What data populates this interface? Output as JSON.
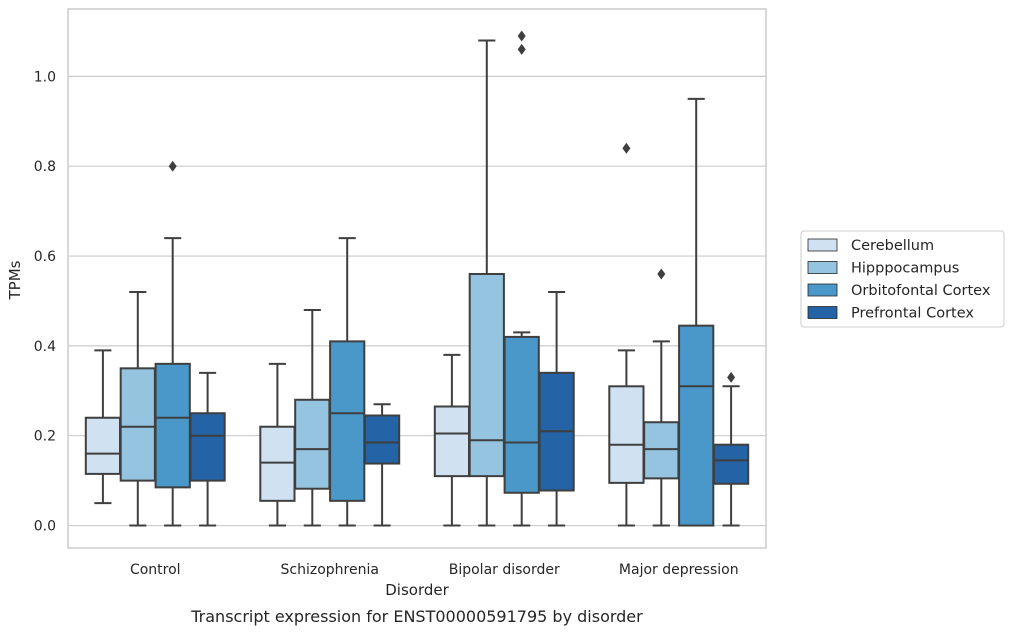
{
  "chart_data": {
    "type": "box",
    "caption": "Transcript expression for ENST00000591795 by disorder",
    "xlabel": "Disorder",
    "ylabel": "TPMs",
    "ylim": [
      -0.05,
      1.15
    ],
    "yticks": [
      0.0,
      0.2,
      0.4,
      0.6,
      0.8,
      1.0
    ],
    "ytick_labels": [
      "0.0",
      "0.2",
      "0.4",
      "0.6",
      "0.8",
      "1.0"
    ],
    "grid": "horizontal",
    "legend_position": "right",
    "categories": [
      "Control",
      "Schizophrenia",
      "Bipolar disorder",
      "Major depression"
    ],
    "series": [
      {
        "name": "Cerebellum",
        "color": "#d0e1f2",
        "boxes": [
          {
            "whislo": 0.05,
            "q1": 0.115,
            "med": 0.16,
            "q3": 0.24,
            "whishi": 0.39,
            "fliers": []
          },
          {
            "whislo": 0.0,
            "q1": 0.055,
            "med": 0.14,
            "q3": 0.22,
            "whishi": 0.36,
            "fliers": []
          },
          {
            "whislo": 0.0,
            "q1": 0.11,
            "med": 0.205,
            "q3": 0.265,
            "whishi": 0.38,
            "fliers": []
          },
          {
            "whislo": 0.0,
            "q1": 0.095,
            "med": 0.18,
            "q3": 0.31,
            "whishi": 0.39,
            "fliers": [
              0.84
            ]
          }
        ]
      },
      {
        "name": "Hipppocampus",
        "color": "#94c4df",
        "boxes": [
          {
            "whislo": 0.0,
            "q1": 0.1,
            "med": 0.22,
            "q3": 0.35,
            "whishi": 0.52,
            "fliers": []
          },
          {
            "whislo": 0.0,
            "q1": 0.082,
            "med": 0.17,
            "q3": 0.28,
            "whishi": 0.48,
            "fliers": []
          },
          {
            "whislo": 0.0,
            "q1": 0.11,
            "med": 0.19,
            "q3": 0.56,
            "whishi": 1.08,
            "fliers": []
          },
          {
            "whislo": 0.0,
            "q1": 0.105,
            "med": 0.17,
            "q3": 0.23,
            "whishi": 0.41,
            "fliers": [
              0.56
            ]
          }
        ]
      },
      {
        "name": "Orbitofontal Cortex",
        "color": "#4a98c9",
        "boxes": [
          {
            "whislo": 0.0,
            "q1": 0.085,
            "med": 0.24,
            "q3": 0.36,
            "whishi": 0.64,
            "fliers": [
              0.8
            ]
          },
          {
            "whislo": 0.0,
            "q1": 0.055,
            "med": 0.25,
            "q3": 0.41,
            "whishi": 0.64,
            "fliers": []
          },
          {
            "whislo": 0.0,
            "q1": 0.073,
            "med": 0.185,
            "q3": 0.42,
            "whishi": 0.43,
            "fliers": [
              1.06,
              1.09
            ]
          },
          {
            "whislo": 0.0,
            "q1": 0.0,
            "med": 0.31,
            "q3": 0.445,
            "whishi": 0.95,
            "fliers": []
          }
        ]
      },
      {
        "name": "Prefrontal Cortex",
        "color": "#2363a6",
        "boxes": [
          {
            "whislo": 0.0,
            "q1": 0.1,
            "med": 0.2,
            "q3": 0.25,
            "whishi": 0.34,
            "fliers": []
          },
          {
            "whislo": 0.0,
            "q1": 0.138,
            "med": 0.185,
            "q3": 0.245,
            "whishi": 0.27,
            "fliers": []
          },
          {
            "whislo": 0.0,
            "q1": 0.078,
            "med": 0.21,
            "q3": 0.34,
            "whishi": 0.52,
            "fliers": []
          },
          {
            "whislo": 0.0,
            "q1": 0.093,
            "med": 0.145,
            "q3": 0.18,
            "whishi": 0.31,
            "fliers": [
              0.33
            ]
          }
        ]
      }
    ]
  }
}
